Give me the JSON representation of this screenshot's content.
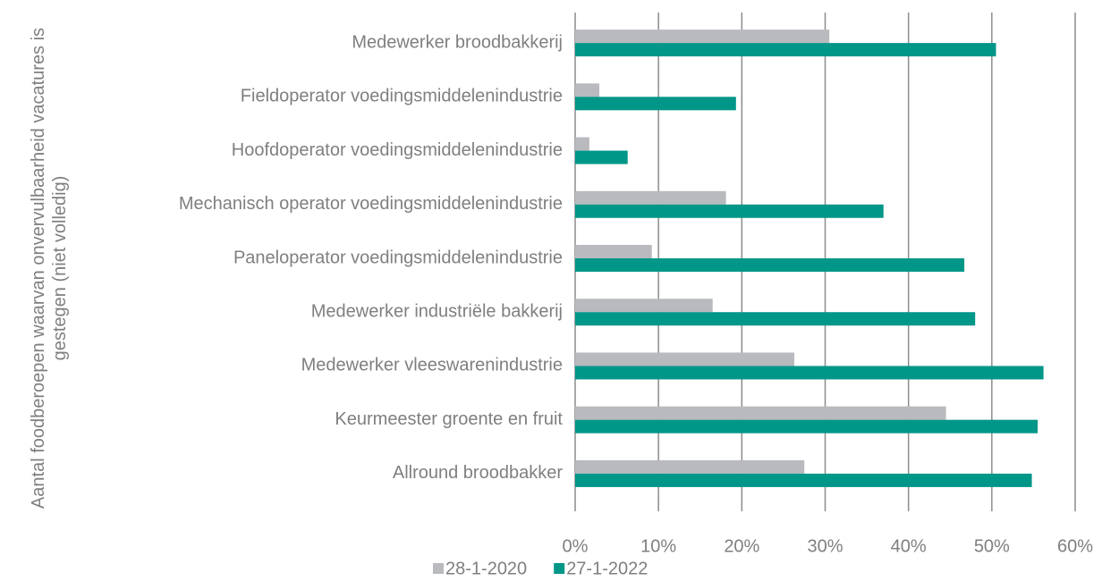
{
  "chart_data": {
    "type": "bar",
    "orientation": "horizontal",
    "y_label": "Aantal foodberoepen waarvan onvervulbaarheid vacatures is gestegen (niet volledig)",
    "categories": [
      "Medewerker broodbakkerij",
      "Fieldoperator voedingsmiddelenindustrie",
      "Hoofdoperator voedingsmiddelenindustrie",
      "Mechanisch operator voedingsmiddelenindustrie",
      "Paneloperator voedingsmiddelenindustrie",
      "Medewerker industriële bakkerij",
      "Medewerker vleeswarenindustrie",
      "Keurmeester groente en fruit",
      "Allround broodbakker"
    ],
    "series": [
      {
        "name": "28-1-2020",
        "color": "#b8babe",
        "values": [
          30.5,
          2.9,
          1.7,
          18.1,
          9.2,
          16.5,
          26.3,
          44.5,
          27.5
        ]
      },
      {
        "name": "27-1-2022",
        "color": "#009688",
        "values": [
          50.5,
          19.3,
          6.3,
          37.0,
          46.7,
          48.0,
          56.2,
          55.5,
          54.8
        ]
      }
    ],
    "xlim": [
      0,
      60
    ],
    "xticks": [
      {
        "value": 0,
        "label": "0%"
      },
      {
        "value": 10,
        "label": "10%"
      },
      {
        "value": 20,
        "label": "20%"
      },
      {
        "value": 30,
        "label": "30%"
      },
      {
        "value": 40,
        "label": "40%"
      },
      {
        "value": 50,
        "label": "50%"
      },
      {
        "value": 60,
        "label": "60%"
      }
    ],
    "grid": true,
    "legend": "bottom"
  }
}
